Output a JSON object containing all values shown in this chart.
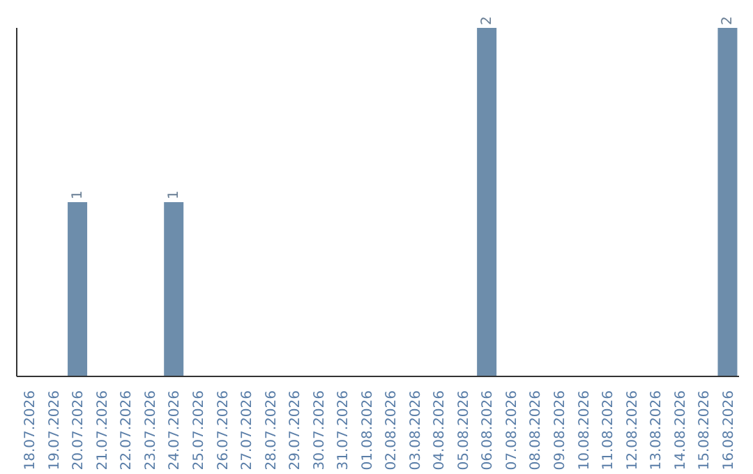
{
  "chart_data": {
    "type": "bar",
    "categories": [
      "18.07.2026",
      "19.07.2026",
      "20.07.2026",
      "21.07.2026",
      "22.07.2026",
      "23.07.2026",
      "24.07.2026",
      "25.07.2026",
      "26.07.2026",
      "27.07.2026",
      "28.07.2026",
      "29.07.2026",
      "30.07.2026",
      "31.07.2026",
      "01.08.2026",
      "02.08.2026",
      "03.08.2026",
      "04.08.2026",
      "05.08.2026",
      "06.08.2026",
      "07.08.2026",
      "08.08.2026",
      "09.08.2026",
      "10.08.2026",
      "11.08.2026",
      "12.08.2026",
      "13.08.2026",
      "14.08.2026",
      "15.08.2026",
      "16.08.2026"
    ],
    "values": [
      0,
      0,
      1,
      0,
      0,
      0,
      1,
      0,
      0,
      0,
      0,
      0,
      0,
      0,
      0,
      0,
      0,
      0,
      0,
      2,
      0,
      0,
      0,
      0,
      0,
      0,
      0,
      0,
      0,
      2
    ],
    "value_labels": [
      null,
      null,
      "1",
      null,
      null,
      null,
      "1",
      null,
      null,
      null,
      null,
      null,
      null,
      null,
      null,
      null,
      null,
      null,
      null,
      "2",
      null,
      null,
      null,
      null,
      null,
      null,
      null,
      null,
      null,
      "2"
    ],
    "color": "#6d8dab",
    "tick_labels": "x"
  }
}
